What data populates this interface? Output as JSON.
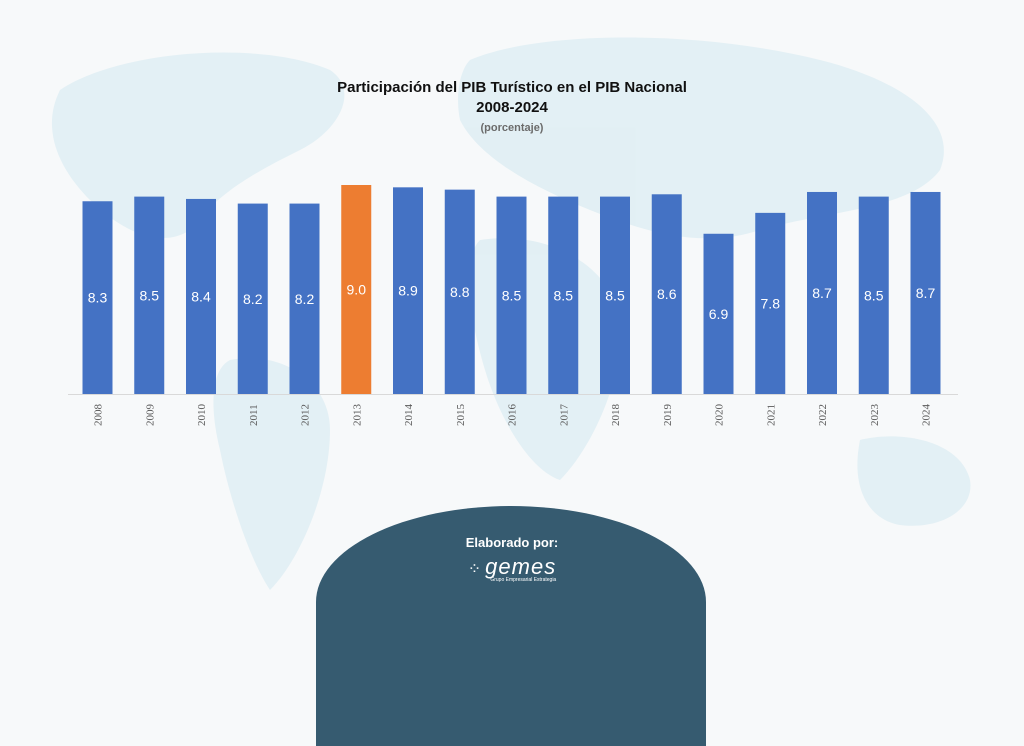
{
  "title_line1": "Participación del PIB Turístico en el PIB Nacional",
  "title_line2": "2008-2024",
  "subtitle": "(porcentaje)",
  "credit": {
    "by": "Elaborado por:",
    "logo_text": "gemes",
    "logo_sub": "Grupo Empresarial Estrategia"
  },
  "colors": {
    "bar": "#4472c4",
    "highlight": "#ed7d31",
    "label": "#ffffff",
    "axis": "#d9d9d9",
    "footer": "#365b70"
  },
  "chart_data": {
    "type": "bar",
    "title": "Participación del PIB Turístico en el PIB Nacional 2008-2024",
    "subtitle": "(porcentaje)",
    "categories": [
      "2008",
      "2009",
      "2010",
      "2011",
      "2012",
      "2013",
      "2014",
      "2015",
      "2016",
      "2017",
      "2018",
      "2019",
      "2020",
      "2021",
      "2022",
      "2023",
      "2024"
    ],
    "values": [
      8.3,
      8.5,
      8.4,
      8.2,
      8.2,
      9.0,
      8.9,
      8.8,
      8.5,
      8.5,
      8.5,
      8.6,
      6.9,
      7.8,
      8.7,
      8.5,
      8.7
    ],
    "value_labels": [
      "8.3",
      "8.5",
      "8.4",
      "8.2",
      "8.2",
      "9.0",
      "8.9",
      "8.8",
      "8.5",
      "8.5",
      "8.5",
      "8.6",
      "6.9",
      "7.8",
      "8.7",
      "8.5",
      "8.7"
    ],
    "highlight_category": "2013",
    "ylim": [
      0,
      9.0
    ],
    "xlabel": "",
    "ylabel": "",
    "grid": false,
    "legend": "none",
    "tick_label_rotation": "vertical"
  }
}
